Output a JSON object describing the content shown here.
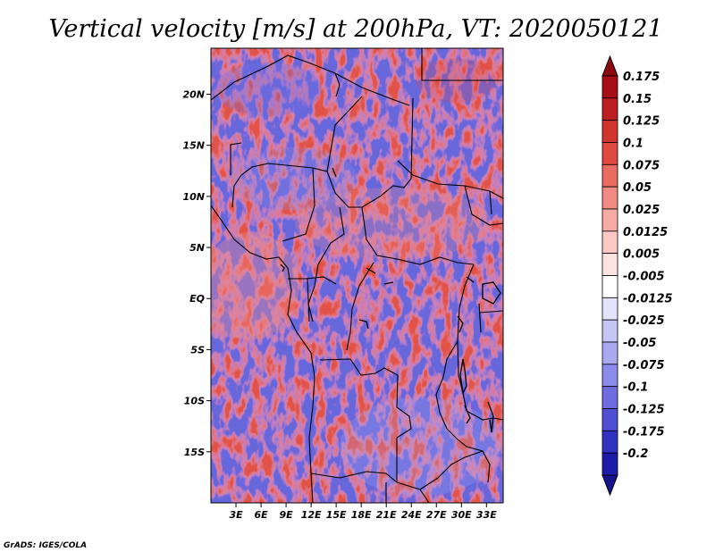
{
  "title": "Vertical velocity [m/s] at 200hPa, VT: 2020050121",
  "credit": "GrADS: IGES/COLA",
  "map": {
    "lat_range": [
      -20,
      24.5
    ],
    "lon_range": [
      0,
      35
    ],
    "lat_ticks": [
      {
        "value": 20,
        "label": "20N"
      },
      {
        "value": 15,
        "label": "15N"
      },
      {
        "value": 10,
        "label": "10N"
      },
      {
        "value": 5,
        "label": "5N"
      },
      {
        "value": 0,
        "label": "EQ"
      },
      {
        "value": -5,
        "label": "5S"
      },
      {
        "value": -10,
        "label": "10S"
      },
      {
        "value": -15,
        "label": "15S"
      }
    ],
    "lon_ticks": [
      {
        "value": 3,
        "label": "3E"
      },
      {
        "value": 6,
        "label": "6E"
      },
      {
        "value": 9,
        "label": "9E"
      },
      {
        "value": 12,
        "label": "12E"
      },
      {
        "value": 15,
        "label": "15E"
      },
      {
        "value": 18,
        "label": "18E"
      },
      {
        "value": 21,
        "label": "21E"
      },
      {
        "value": 24,
        "label": "24E"
      },
      {
        "value": 27,
        "label": "27E"
      },
      {
        "value": 30,
        "label": "30E"
      },
      {
        "value": 33,
        "label": "33E"
      }
    ]
  },
  "colorbar": {
    "levels": [
      {
        "label": "0.175",
        "color": "#a50f15"
      },
      {
        "label": "0.15",
        "color": "#be1e22"
      },
      {
        "label": "0.125",
        "color": "#d2342e"
      },
      {
        "label": "0.1",
        "color": "#e0493f"
      },
      {
        "label": "0.075",
        "color": "#ea6b60"
      },
      {
        "label": "0.05",
        "color": "#f08c84"
      },
      {
        "label": "0.025",
        "color": "#f6aca5"
      },
      {
        "label": "0.0125",
        "color": "#fac9c4"
      },
      {
        "label": "0.005",
        "color": "#fde4e1"
      },
      {
        "label": "-0.005",
        "color": "#ffffff"
      },
      {
        "label": "-0.0125",
        "color": "#e3e3fb"
      },
      {
        "label": "-0.025",
        "color": "#c6c6f6"
      },
      {
        "label": "-0.05",
        "color": "#a9a9f0"
      },
      {
        "label": "-0.075",
        "color": "#8b8be9"
      },
      {
        "label": "-0.1",
        "color": "#6d6de0"
      },
      {
        "label": "-0.125",
        "color": "#4f4fd4"
      },
      {
        "label": "-0.175",
        "color": "#3232c2"
      },
      {
        "label": "-0.2",
        "color": "#1c1ca8"
      }
    ],
    "top_cap_color": "#8b0a10",
    "bottom_cap_color": "#14148c"
  }
}
